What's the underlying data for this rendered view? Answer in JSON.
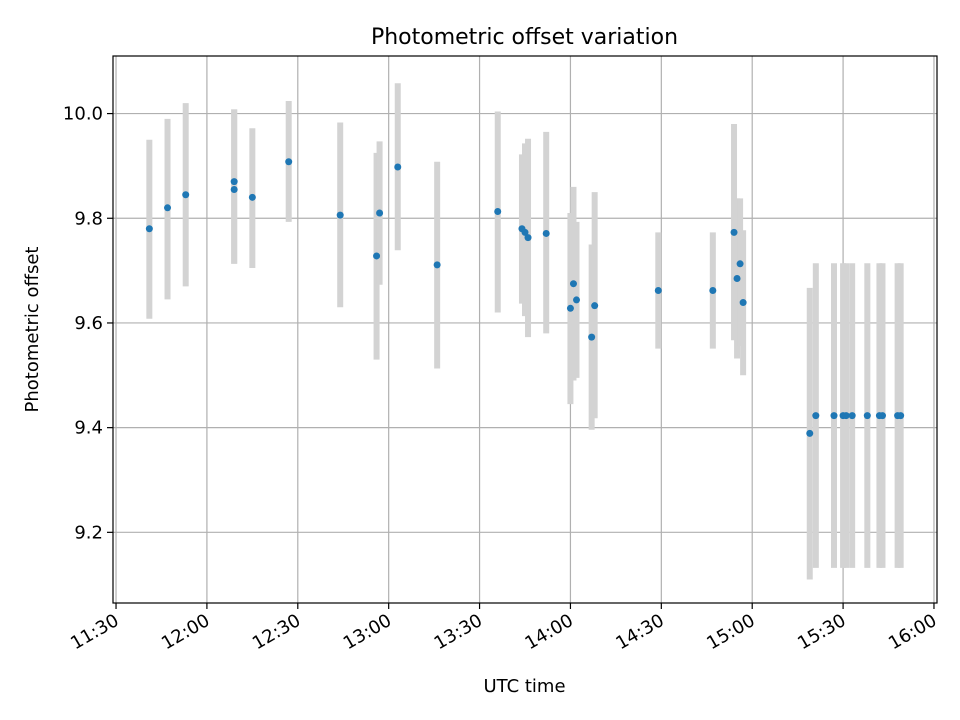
{
  "chart_data": {
    "type": "scatter",
    "title": "Photometric offset variation",
    "xlabel": "UTC time",
    "ylabel": "Photometric offset",
    "xlim": [
      "11:29",
      "16:01"
    ],
    "ylim": [
      9.065,
      10.11
    ],
    "grid": true,
    "error_bar_color": "#d3d3d3",
    "marker_color": "#1f77b4",
    "x_tick_labels": [
      "11:30",
      "12:00",
      "12:30",
      "13:00",
      "13:30",
      "14:00",
      "14:30",
      "15:00",
      "15:30",
      "16:00"
    ],
    "y_tick_labels": [
      "9.2",
      "9.4",
      "9.6",
      "9.8",
      "10.0"
    ],
    "y_ticks": [
      9.2,
      9.4,
      9.6,
      9.8,
      10.0
    ],
    "points": [
      {
        "t": "11:41",
        "y": 9.78,
        "lo": 9.608,
        "hi": 9.95
      },
      {
        "t": "11:47",
        "y": 9.82,
        "lo": 9.645,
        "hi": 9.99
      },
      {
        "t": "11:53",
        "y": 9.845,
        "lo": 9.67,
        "hi": 10.02
      },
      {
        "t": "12:09",
        "y": 9.87,
        "lo": 9.713,
        "hi": 10.008
      },
      {
        "t": "12:09",
        "y": 9.855,
        "lo": 9.713,
        "hi": 10.008
      },
      {
        "t": "12:15",
        "y": 9.84,
        "lo": 9.705,
        "hi": 9.972
      },
      {
        "t": "12:27",
        "y": 9.908,
        "lo": 9.793,
        "hi": 10.024
      },
      {
        "t": "12:44",
        "y": 9.806,
        "lo": 9.63,
        "hi": 9.983
      },
      {
        "t": "12:56",
        "y": 9.728,
        "lo": 9.53,
        "hi": 9.925
      },
      {
        "t": "12:57",
        "y": 9.81,
        "lo": 9.673,
        "hi": 9.947
      },
      {
        "t": "13:03",
        "y": 9.898,
        "lo": 9.739,
        "hi": 10.058
      },
      {
        "t": "13:16",
        "y": 9.711,
        "lo": 9.513,
        "hi": 9.908
      },
      {
        "t": "13:36",
        "y": 9.813,
        "lo": 9.62,
        "hi": 10.004
      },
      {
        "t": "13:44",
        "y": 9.78,
        "lo": 9.637,
        "hi": 9.922
      },
      {
        "t": "13:45",
        "y": 9.773,
        "lo": 9.613,
        "hi": 9.943
      },
      {
        "t": "13:46",
        "y": 9.763,
        "lo": 9.573,
        "hi": 9.952
      },
      {
        "t": "13:52",
        "y": 9.771,
        "lo": 9.58,
        "hi": 9.965
      },
      {
        "t": "14:00",
        "y": 9.628,
        "lo": 9.445,
        "hi": 9.81
      },
      {
        "t": "14:01",
        "y": 9.675,
        "lo": 9.49,
        "hi": 9.86
      },
      {
        "t": "14:02",
        "y": 9.644,
        "lo": 9.495,
        "hi": 9.793
      },
      {
        "t": "14:07",
        "y": 9.573,
        "lo": 9.396,
        "hi": 9.75
      },
      {
        "t": "14:08",
        "y": 9.633,
        "lo": 9.418,
        "hi": 9.85
      },
      {
        "t": "14:29",
        "y": 9.662,
        "lo": 9.551,
        "hi": 9.773
      },
      {
        "t": "14:47",
        "y": 9.662,
        "lo": 9.551,
        "hi": 9.773
      },
      {
        "t": "14:54",
        "y": 9.773,
        "lo": 9.567,
        "hi": 9.98
      },
      {
        "t": "14:55",
        "y": 9.685,
        "lo": 9.532,
        "hi": 9.838
      },
      {
        "t": "14:56",
        "y": 9.713,
        "lo": 9.556,
        "hi": 9.838
      },
      {
        "t": "14:57",
        "y": 9.639,
        "lo": 9.5,
        "hi": 9.777
      },
      {
        "t": "15:19",
        "y": 9.389,
        "lo": 9.11,
        "hi": 9.667
      },
      {
        "t": "15:21",
        "y": 9.423,
        "lo": 9.132,
        "hi": 9.714
      },
      {
        "t": "15:27",
        "y": 9.423,
        "lo": 9.132,
        "hi": 9.714
      },
      {
        "t": "15:30",
        "y": 9.423,
        "lo": 9.132,
        "hi": 9.714
      },
      {
        "t": "15:31",
        "y": 9.423,
        "lo": 9.132,
        "hi": 9.714
      },
      {
        "t": "15:33",
        "y": 9.423,
        "lo": 9.132,
        "hi": 9.714
      },
      {
        "t": "15:38",
        "y": 9.423,
        "lo": 9.132,
        "hi": 9.714
      },
      {
        "t": "15:42",
        "y": 9.423,
        "lo": 9.132,
        "hi": 9.714
      },
      {
        "t": "15:43",
        "y": 9.423,
        "lo": 9.132,
        "hi": 9.714
      },
      {
        "t": "15:48",
        "y": 9.423,
        "lo": 9.132,
        "hi": 9.714
      },
      {
        "t": "15:49",
        "y": 9.423,
        "lo": 9.132,
        "hi": 9.714
      }
    ]
  }
}
